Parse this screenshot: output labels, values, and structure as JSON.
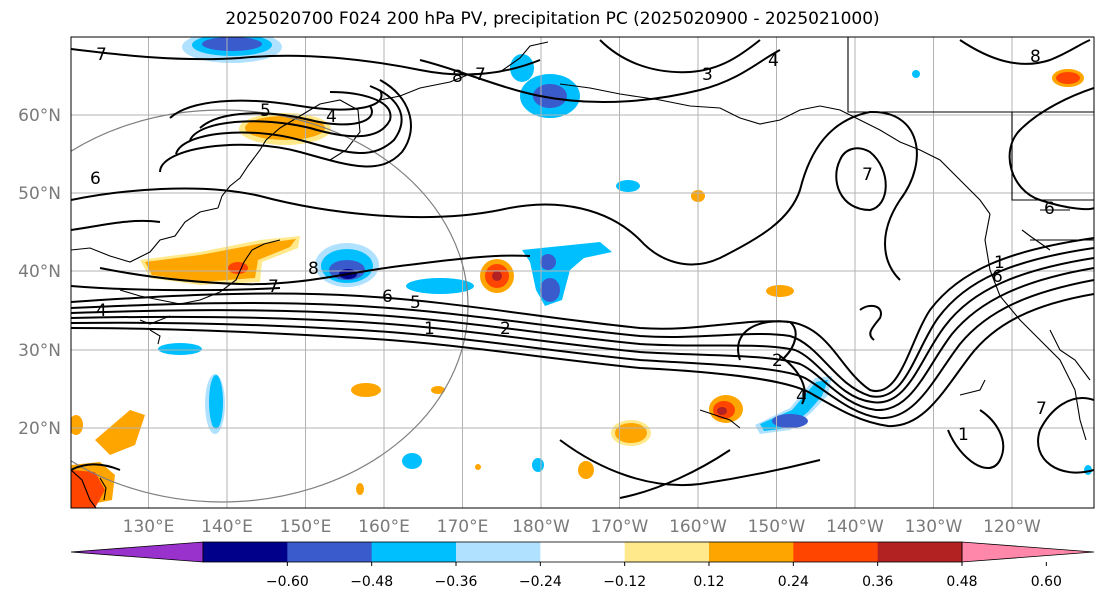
{
  "title": "2025020700 F024 200 hPa PV, precipitation PC (2025020900 - 2025021000)",
  "map": {
    "lon_labels": [
      "130°E",
      "140°E",
      "150°E",
      "160°E",
      "170°E",
      "180°W",
      "170°W",
      "160°W",
      "150°W",
      "140°W",
      "130°W",
      "120°W"
    ],
    "lat_labels": [
      "60°N",
      "50°N",
      "40°N",
      "30°N",
      "20°N"
    ]
  },
  "contour_labels": [
    "7",
    "8",
    "7",
    "3",
    "4",
    "8",
    "5",
    "4",
    "6",
    "6",
    "4",
    "7",
    "8",
    "6",
    "5",
    "1",
    "2",
    "2",
    "4",
    "7",
    "1",
    "6",
    "1",
    "7"
  ],
  "colorbar": {
    "tick_labels": [
      "−0.60",
      "−0.48",
      "−0.36",
      "−0.24",
      "−0.12",
      "0.12",
      "0.24",
      "0.36",
      "0.48",
      "0.60"
    ],
    "colors": [
      "#9932cc",
      "#00008b",
      "#3a5bcc",
      "#00bfff",
      "#b0e2ff",
      "#ffffff",
      "#ffe98a",
      "#ffa500",
      "#ff4500",
      "#b22222",
      "#ff88aa"
    ]
  }
}
